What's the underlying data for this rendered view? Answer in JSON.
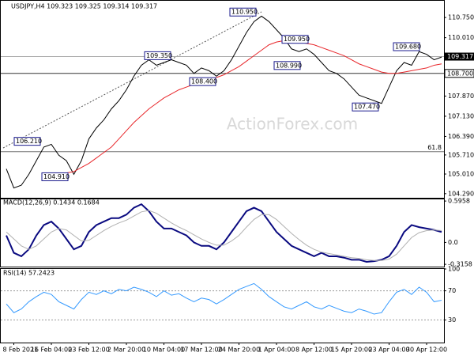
{
  "chart_data": [
    {
      "type": "line",
      "title": "USDJPY,H4  109.323 109.325 109.314 109.317",
      "watermark": "ActionForex.com",
      "ylim": [
        104.14,
        111.16
      ],
      "yticks": [
        {
          "value": 104.29,
          "label": "104.290"
        },
        {
          "value": 105.01,
          "label": "105.010"
        },
        {
          "value": 105.71,
          "label": "105.710"
        },
        {
          "value": 106.39,
          "label": "106.390"
        },
        {
          "value": 107.13,
          "label": "107.130"
        },
        {
          "value": 107.87,
          "label": "107.870"
        },
        {
          "value": 110.01,
          "label": "110.010"
        },
        {
          "value": 110.75,
          "label": "110.750"
        }
      ],
      "series": [
        {
          "color": "#000000",
          "values": [
            105.2,
            104.5,
            104.6,
            105.0,
            105.5,
            106.0,
            106.1,
            105.7,
            105.5,
            105.0,
            105.5,
            106.3,
            106.7,
            107.0,
            107.4,
            107.7,
            108.1,
            108.6,
            109.0,
            109.2,
            109.0,
            109.1,
            109.2,
            109.1,
            109.0,
            108.7,
            108.9,
            108.8,
            108.6,
            108.8,
            109.2,
            109.7,
            110.2,
            110.6,
            110.8,
            110.6,
            110.3,
            110.0,
            109.6,
            109.5,
            109.6,
            109.4,
            109.1,
            108.8,
            108.7,
            108.5,
            108.2,
            107.9,
            107.8,
            107.7,
            107.6,
            108.2,
            108.8,
            109.1,
            109.0,
            109.5,
            109.4,
            109.2,
            109.3
          ]
        },
        {
          "color": "#e8262a",
          "values": [
            null,
            null,
            null,
            null,
            null,
            104.9,
            104.95,
            105.0,
            105.05,
            105.1,
            105.25,
            105.4,
            105.6,
            105.8,
            106.0,
            106.3,
            106.6,
            106.9,
            107.15,
            107.4,
            107.6,
            107.8,
            107.95,
            108.1,
            108.2,
            108.3,
            108.4,
            108.5,
            108.55,
            108.65,
            108.8,
            108.95,
            109.15,
            109.35,
            109.55,
            109.75,
            109.85,
            109.9,
            109.9,
            109.85,
            109.8,
            109.75,
            109.65,
            109.55,
            109.45,
            109.35,
            109.2,
            109.05,
            108.95,
            108.85,
            108.75,
            108.7,
            108.7,
            108.75,
            108.8,
            108.85,
            108.9,
            109.0,
            109.05
          ]
        }
      ],
      "current": {
        "value": 109.317,
        "label": "109.317"
      },
      "level": {
        "value": 108.7,
        "label": "108.700"
      },
      "fib": {
        "value": 105.83,
        "label": "61.8"
      },
      "annotations": [
        {
          "value": 106.21,
          "label": "106.210"
        },
        {
          "value": 104.91,
          "label": "104.910"
        },
        {
          "value": 109.35,
          "label": "109.350"
        },
        {
          "value": 108.4,
          "label": "108.400"
        },
        {
          "value": 110.95,
          "label": "110.950"
        },
        {
          "value": 109.95,
          "label": "109.950"
        },
        {
          "value": 108.99,
          "label": "108.990"
        },
        {
          "value": 107.47,
          "label": "107.470"
        },
        {
          "value": 109.68,
          "label": "109.680"
        }
      ]
    },
    {
      "type": "line",
      "title": "MACD(12,26,9) 0.1434 0.1684",
      "ylim": [
        -0.36,
        0.62
      ],
      "yticks": [
        0.5958,
        {
          "value": 0,
          "label": "0.0"
        },
        -0.3158
      ],
      "series": [
        {
          "color": "#0a0a80",
          "values": [
            0.1,
            -0.15,
            -0.2,
            -0.1,
            0.1,
            0.25,
            0.3,
            0.2,
            0.05,
            -0.1,
            -0.05,
            0.15,
            0.25,
            0.3,
            0.35,
            0.35,
            0.4,
            0.5,
            0.55,
            0.45,
            0.3,
            0.2,
            0.2,
            0.15,
            0.1,
            0.0,
            -0.05,
            -0.05,
            -0.1,
            0.0,
            0.15,
            0.3,
            0.45,
            0.5,
            0.45,
            0.3,
            0.15,
            0.05,
            -0.05,
            -0.1,
            -0.15,
            -0.2,
            -0.15,
            -0.2,
            -0.2,
            -0.22,
            -0.25,
            -0.25,
            -0.28,
            -0.27,
            -0.25,
            -0.2,
            -0.05,
            0.15,
            0.25,
            0.22,
            0.2,
            0.18,
            0.15
          ]
        },
        {
          "color": "#b0b0b0",
          "values": [
            0.15,
            0.05,
            -0.05,
            -0.1,
            -0.05,
            0.05,
            0.15,
            0.2,
            0.18,
            0.1,
            0.02,
            0.03,
            0.1,
            0.17,
            0.23,
            0.28,
            0.32,
            0.38,
            0.44,
            0.46,
            0.42,
            0.35,
            0.28,
            0.22,
            0.17,
            0.11,
            0.05,
            0.0,
            -0.04,
            -0.04,
            0.02,
            0.1,
            0.22,
            0.33,
            0.4,
            0.4,
            0.33,
            0.23,
            0.13,
            0.04,
            -0.04,
            -0.1,
            -0.14,
            -0.16,
            -0.18,
            -0.2,
            -0.22,
            -0.23,
            -0.25,
            -0.26,
            -0.26,
            -0.24,
            -0.17,
            -0.05,
            0.07,
            0.14,
            0.17,
            0.18,
            0.17
          ]
        }
      ]
    },
    {
      "type": "line",
      "title": "RSI(14) 57.2423",
      "ylim": [
        0,
        100
      ],
      "yticks": [
        100,
        70,
        30
      ],
      "categories": [
        null,
        "8 Feb 2021",
        null,
        null,
        null,
        null,
        "16 Feb 04:00",
        null,
        null,
        null,
        null,
        "23 Feb 12:00",
        null,
        null,
        null,
        null,
        "2 Mar 20:00",
        null,
        null,
        null,
        null,
        "10 Mar 04:00",
        null,
        null,
        null,
        null,
        "17 Mar 12:00",
        null,
        null,
        null,
        null,
        "24 Mar 20:00",
        null,
        null,
        null,
        null,
        "1 Apr 04:00",
        null,
        null,
        null,
        null,
        "8 Apr 12:00",
        null,
        null,
        null,
        null,
        "15 Apr 20:00",
        null,
        null,
        null,
        null,
        "23 Apr 04:00",
        null,
        null,
        null,
        null,
        "30 Apr 12:00",
        null,
        null
      ],
      "series": [
        {
          "color": "#3399ff",
          "values": [
            52,
            40,
            45,
            55,
            62,
            68,
            65,
            55,
            50,
            45,
            58,
            68,
            65,
            70,
            66,
            72,
            70,
            75,
            72,
            68,
            62,
            70,
            64,
            66,
            60,
            55,
            60,
            58,
            52,
            58,
            65,
            72,
            76,
            80,
            72,
            62,
            55,
            48,
            45,
            50,
            55,
            48,
            45,
            50,
            46,
            42,
            40,
            45,
            42,
            38,
            40,
            55,
            68,
            72,
            65,
            75,
            68,
            55,
            57
          ]
        }
      ]
    }
  ]
}
